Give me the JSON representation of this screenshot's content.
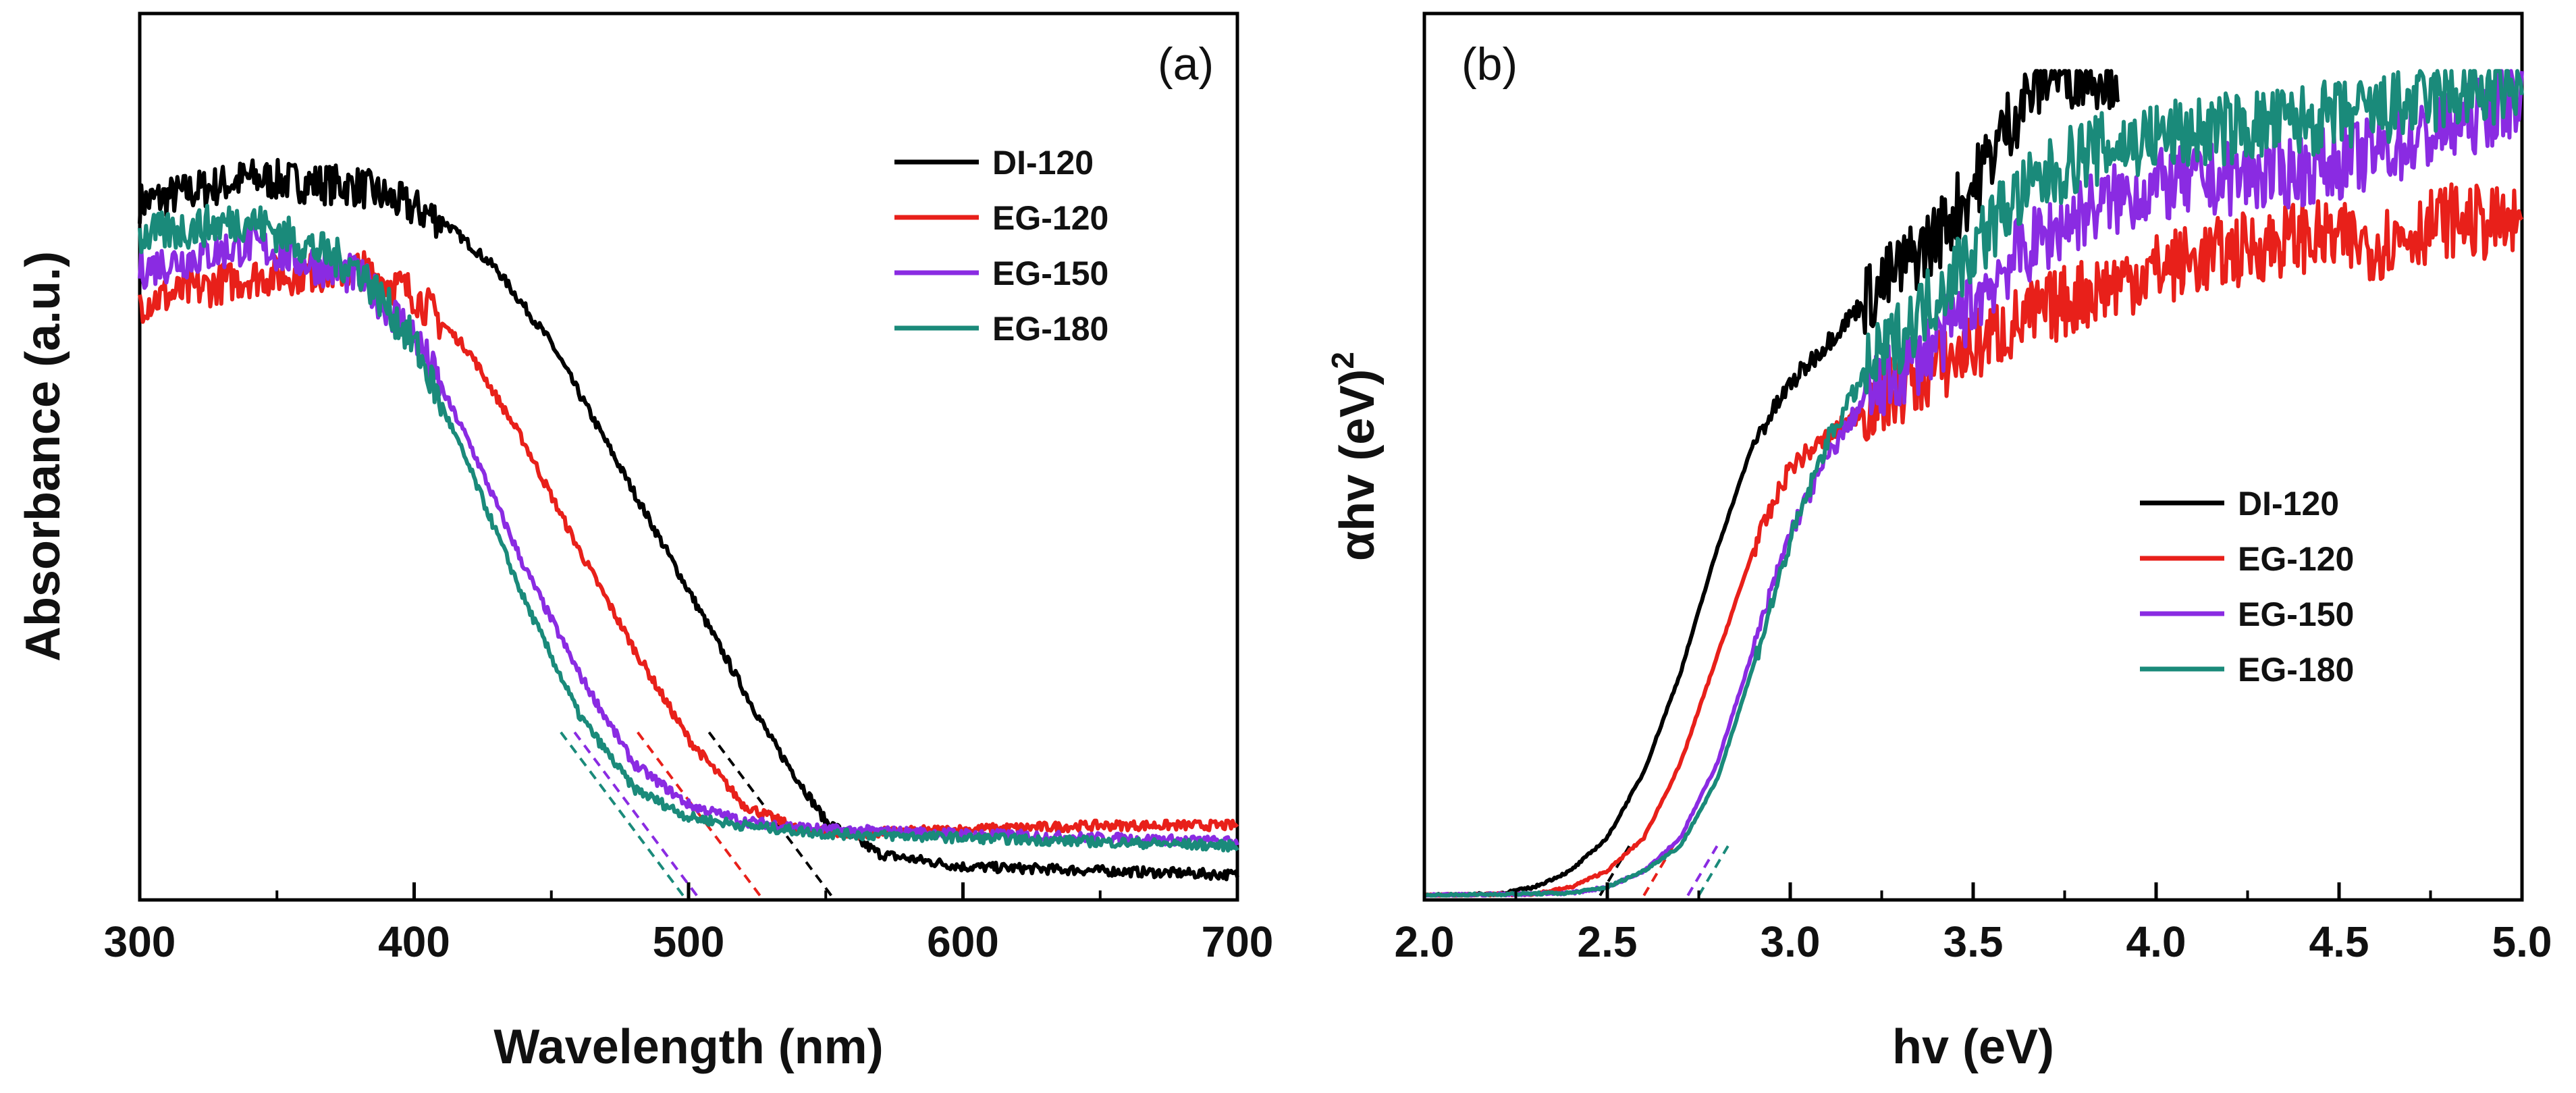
{
  "chart_data": [
    {
      "panel_label": "(a)",
      "type": "line",
      "xlabel": "Wavelength (nm)",
      "ylabel": "Absorbance (a.u.)",
      "xlim": [
        300,
        700
      ],
      "ylim": [
        0,
        1
      ],
      "x_ticks": [
        300,
        400,
        500,
        600,
        700
      ],
      "y_ticks_shown": false,
      "legend_position": "top-right",
      "grid": false,
      "series": [
        {
          "name": "DI-120",
          "color": "#000000",
          "tangent_intercept": 552,
          "x": [
            300,
            340,
            380,
            410,
            430,
            450,
            470,
            490,
            510,
            530,
            550,
            570,
            600,
            650,
            700
          ],
          "y": [
            0.84,
            0.87,
            0.86,
            0.82,
            0.76,
            0.67,
            0.55,
            0.43,
            0.31,
            0.19,
            0.09,
            0.05,
            0.035,
            0.03,
            0.025
          ]
        },
        {
          "name": "EG-120",
          "color": "#e8201a",
          "tangent_intercept": 526,
          "x": [
            300,
            340,
            380,
            400,
            420,
            440,
            460,
            480,
            500,
            520,
            540,
            560,
            600,
            650,
            700
          ],
          "y": [
            0.72,
            0.75,
            0.76,
            0.73,
            0.66,
            0.55,
            0.42,
            0.3,
            0.19,
            0.11,
            0.08,
            0.075,
            0.08,
            0.085,
            0.085
          ]
        },
        {
          "name": "EG-150",
          "color": "#8a2be2",
          "tangent_intercept": 503,
          "x": [
            300,
            340,
            380,
            400,
            420,
            440,
            460,
            480,
            500,
            520,
            550,
            600,
            650,
            700
          ],
          "y": [
            0.76,
            0.79,
            0.75,
            0.68,
            0.55,
            0.4,
            0.27,
            0.16,
            0.11,
            0.09,
            0.08,
            0.075,
            0.07,
            0.065
          ]
        },
        {
          "name": "EG-180",
          "color": "#1a8a7a",
          "tangent_intercept": 498,
          "x": [
            300,
            340,
            380,
            400,
            420,
            440,
            460,
            480,
            500,
            520,
            550,
            600,
            650,
            700
          ],
          "y": [
            0.8,
            0.82,
            0.76,
            0.67,
            0.52,
            0.36,
            0.22,
            0.13,
            0.095,
            0.085,
            0.075,
            0.07,
            0.065,
            0.06
          ]
        }
      ]
    },
    {
      "panel_label": "(b)",
      "type": "line",
      "xlabel": "hv (eV)",
      "ylabel_main": "αhv (eV)",
      "ylabel_sup": "2",
      "xlim": [
        2.0,
        5.0
      ],
      "ylim": [
        0,
        1
      ],
      "x_ticks": [
        2.0,
        2.5,
        3.0,
        3.5,
        4.0,
        4.5,
        5.0
      ],
      "y_ticks_shown": false,
      "legend_position": "center-right",
      "grid": false,
      "series": [
        {
          "name": "DI-120",
          "color": "#000000",
          "tangent_intercept": 2.48,
          "x": [
            2.0,
            2.2,
            2.3,
            2.4,
            2.5,
            2.6,
            2.7,
            2.8,
            2.9,
            3.0,
            3.1,
            3.2,
            3.3,
            3.4,
            3.5,
            3.6,
            3.7,
            3.8,
            3.9
          ],
          "y": [
            0.0,
            0.002,
            0.01,
            0.03,
            0.07,
            0.15,
            0.27,
            0.42,
            0.55,
            0.62,
            0.67,
            0.72,
            0.76,
            0.8,
            0.86,
            0.94,
            1.0,
            1.0,
            1.0
          ]
        },
        {
          "name": "EG-120",
          "color": "#e8201a",
          "tangent_intercept": 2.6,
          "x": [
            2.0,
            2.3,
            2.4,
            2.5,
            2.6,
            2.7,
            2.8,
            2.9,
            3.0,
            3.2,
            3.4,
            3.6,
            3.8,
            4.0,
            4.2,
            4.4,
            4.6,
            4.8,
            5.0
          ],
          "y": [
            0.0,
            0.002,
            0.01,
            0.03,
            0.07,
            0.16,
            0.29,
            0.42,
            0.52,
            0.59,
            0.64,
            0.69,
            0.73,
            0.76,
            0.78,
            0.8,
            0.79,
            0.82,
            0.81
          ]
        },
        {
          "name": "EG-150",
          "color": "#8a2be2",
          "tangent_intercept": 2.72,
          "x": [
            2.0,
            2.4,
            2.5,
            2.6,
            2.7,
            2.8,
            2.9,
            3.0,
            3.1,
            3.2,
            3.4,
            3.6,
            3.8,
            4.0,
            4.2,
            4.4,
            4.6,
            4.8,
            5.0
          ],
          "y": [
            0.0,
            0.003,
            0.01,
            0.03,
            0.07,
            0.16,
            0.3,
            0.44,
            0.53,
            0.6,
            0.67,
            0.77,
            0.83,
            0.86,
            0.87,
            0.88,
            0.9,
            0.93,
            0.97
          ]
        },
        {
          "name": "EG-180",
          "color": "#1a8a7a",
          "tangent_intercept": 2.75,
          "x": [
            2.0,
            2.4,
            2.5,
            2.6,
            2.7,
            2.8,
            2.9,
            3.0,
            3.1,
            3.2,
            3.4,
            3.6,
            3.8,
            4.0,
            4.2,
            4.4,
            4.6,
            4.8,
            5.0
          ],
          "y": [
            0.0,
            0.003,
            0.01,
            0.03,
            0.06,
            0.14,
            0.28,
            0.43,
            0.55,
            0.63,
            0.73,
            0.84,
            0.9,
            0.92,
            0.93,
            0.94,
            0.95,
            0.97,
            0.98
          ]
        }
      ]
    }
  ]
}
